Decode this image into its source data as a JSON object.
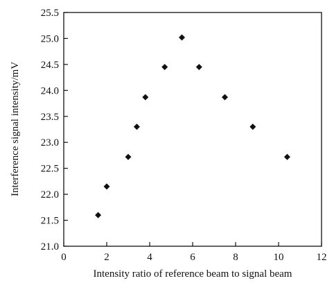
{
  "chart_data": {
    "type": "scatter",
    "title": "",
    "xlabel": "Intensity ratio of reference beam to signal beam",
    "ylabel": "Interference signal intensity/mV",
    "xlim": [
      0,
      12
    ],
    "ylim": [
      21.0,
      25.5
    ],
    "xticks": [
      0,
      2,
      4,
      6,
      8,
      10,
      12
    ],
    "yticks": [
      21.0,
      21.5,
      22.0,
      22.5,
      23.0,
      23.5,
      24.0,
      24.5,
      25.0,
      25.5
    ],
    "x": [
      1.6,
      2.0,
      3.0,
      3.4,
      3.8,
      4.7,
      5.5,
      6.3,
      7.5,
      8.8,
      10.4
    ],
    "y": [
      21.6,
      22.15,
      22.72,
      23.3,
      23.87,
      24.45,
      25.02,
      24.45,
      23.87,
      23.3,
      22.72
    ],
    "marker": "diamond",
    "marker_color": "#111111",
    "grid": false,
    "legend": "none"
  }
}
